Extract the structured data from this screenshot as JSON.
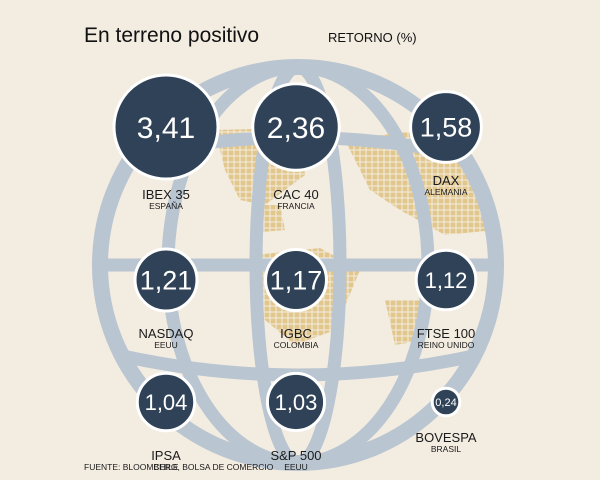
{
  "title": "En terreno positivo",
  "subtitle": "RETORNO (%)",
  "source": "FUENTE: BLOOMBERG, BOLSA DE COMERCIO",
  "colors": {
    "background": "#f3ece1",
    "bubble": "#2f4257",
    "bubble_stroke": "#ffffff",
    "globe": "#b9c5d1",
    "land": "#e2c78d"
  },
  "chart_data": {
    "type": "bubble",
    "title": "En terreno positivo",
    "value_label": "RETORNO (%)",
    "points": [
      {
        "index": "IBEX 35",
        "country": "ESPAÑA",
        "display": "3,41",
        "value": 3.41
      },
      {
        "index": "CAC 40",
        "country": "FRANCIA",
        "display": "2,36",
        "value": 2.36
      },
      {
        "index": "DAX",
        "country": "ALEMANIA",
        "display": "1,58",
        "value": 1.58
      },
      {
        "index": "NASDAQ",
        "country": "EEUU",
        "display": "1,21",
        "value": 1.21
      },
      {
        "index": "IGBC",
        "country": "COLOMBIA",
        "display": "1,17",
        "value": 1.17
      },
      {
        "index": "FTSE 100",
        "country": "REINO UNIDO",
        "display": "1,12",
        "value": 1.12
      },
      {
        "index": "IPSA",
        "country": "CHILE",
        "display": "1,04",
        "value": 1.04
      },
      {
        "index": "S&P 500",
        "country": "EEUU",
        "display": "1,03",
        "value": 1.03
      },
      {
        "index": "BOVESPA",
        "country": "BRASIL",
        "display": "0,24",
        "value": 0.24
      }
    ]
  }
}
